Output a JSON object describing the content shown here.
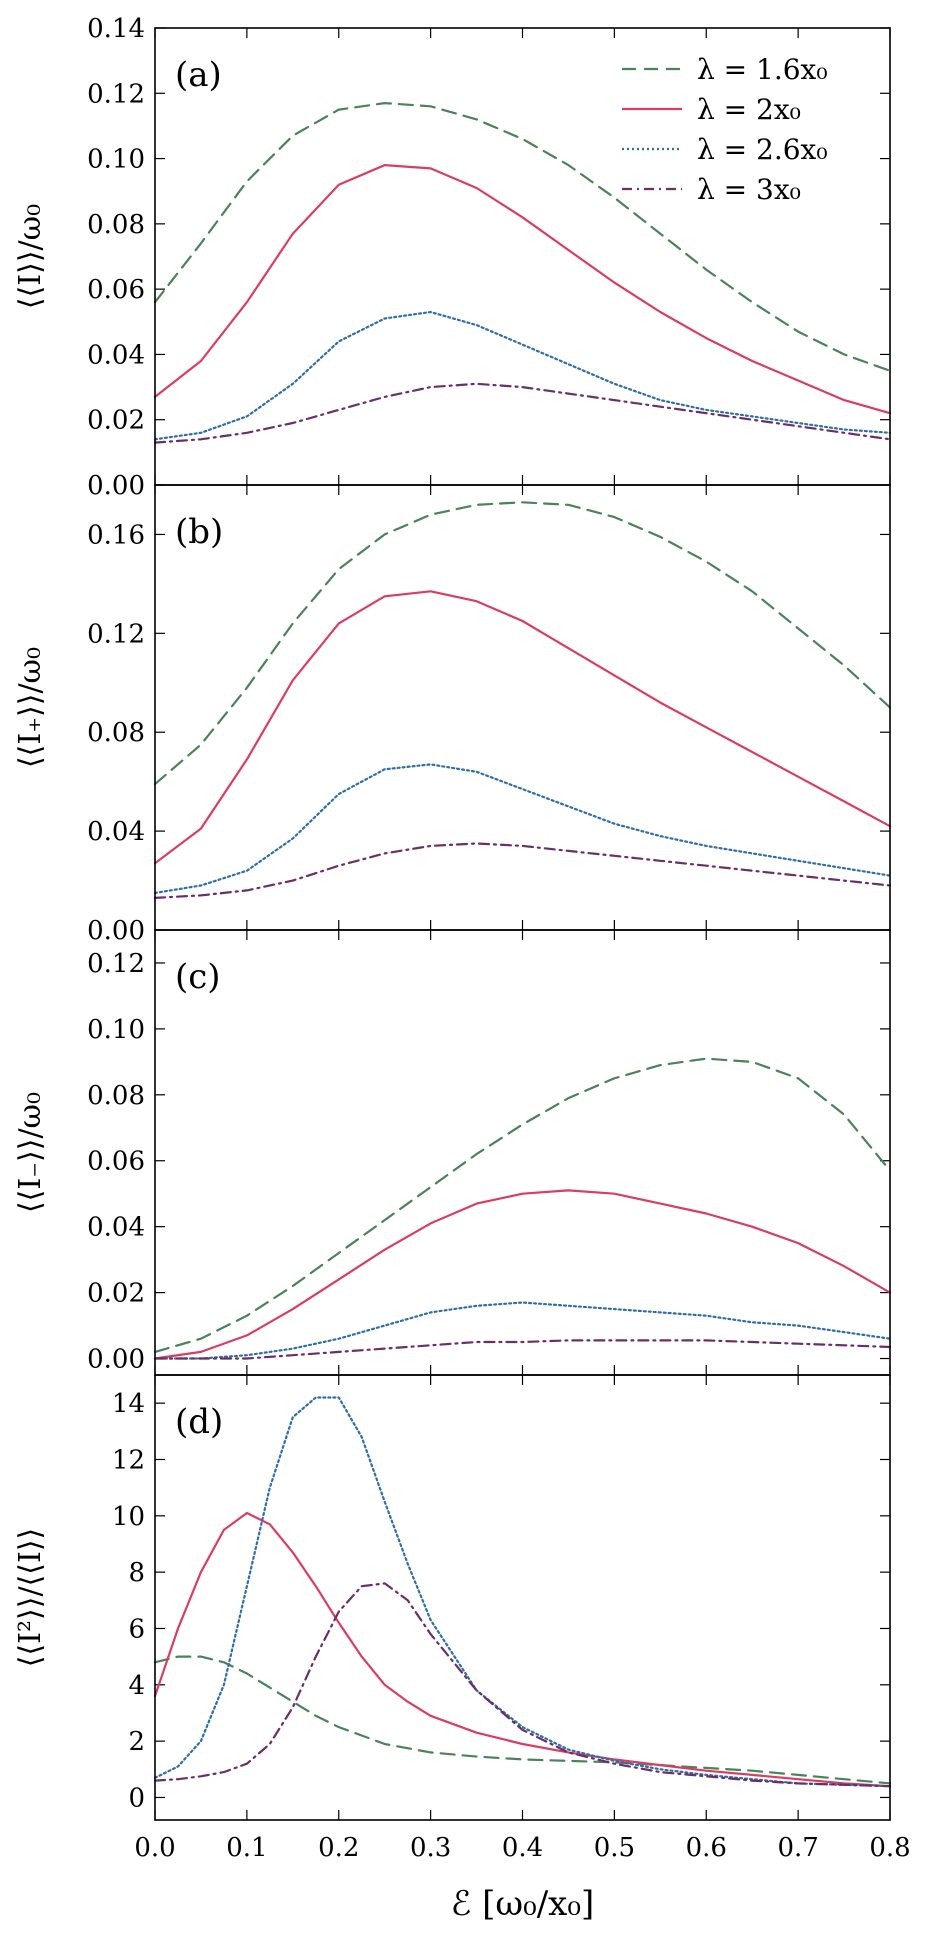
{
  "chart_data": [
    {
      "type": "line",
      "panel_label": "(a)",
      "ylabel": "⟨⟨I⟩⟩/ω₀",
      "xlim": [
        0.0,
        0.8
      ],
      "ylim": [
        0.0,
        0.14
      ],
      "yticks": [
        "0.00",
        "0.02",
        "0.04",
        "0.06",
        "0.08",
        "0.10",
        "0.12",
        "0.14"
      ],
      "legend": true,
      "x": [
        0.0,
        0.05,
        0.1,
        0.15,
        0.2,
        0.25,
        0.3,
        0.35,
        0.4,
        0.45,
        0.5,
        0.55,
        0.6,
        0.65,
        0.7,
        0.75,
        0.8
      ],
      "series": [
        {
          "name": "λ = 1.6x₀",
          "values": [
            0.056,
            0.074,
            0.093,
            0.107,
            0.115,
            0.117,
            0.116,
            0.112,
            0.106,
            0.098,
            0.088,
            0.077,
            0.066,
            0.056,
            0.047,
            0.04,
            0.035
          ]
        },
        {
          "name": "λ = 2x₀",
          "values": [
            0.027,
            0.038,
            0.056,
            0.077,
            0.092,
            0.098,
            0.097,
            0.091,
            0.082,
            0.072,
            0.062,
            0.053,
            0.045,
            0.038,
            0.032,
            0.026,
            0.022
          ]
        },
        {
          "name": "λ = 2.6x₀",
          "values": [
            0.014,
            0.016,
            0.021,
            0.031,
            0.044,
            0.051,
            0.053,
            0.049,
            0.043,
            0.037,
            0.031,
            0.026,
            0.023,
            0.021,
            0.019,
            0.017,
            0.016
          ]
        },
        {
          "name": "λ = 3x₀",
          "values": [
            0.013,
            0.014,
            0.016,
            0.019,
            0.023,
            0.027,
            0.03,
            0.031,
            0.03,
            0.028,
            0.026,
            0.024,
            0.022,
            0.02,
            0.018,
            0.016,
            0.014
          ]
        }
      ]
    },
    {
      "type": "line",
      "panel_label": "(b)",
      "ylabel": "⟨⟨I₊⟩⟩/ω₀",
      "xlim": [
        0.0,
        0.8
      ],
      "ylim": [
        0.0,
        0.18
      ],
      "yticks": [
        "0.00",
        "0.04",
        "0.08",
        "0.12",
        "0.16"
      ],
      "legend": false,
      "x": [
        0.0,
        0.05,
        0.1,
        0.15,
        0.2,
        0.25,
        0.3,
        0.35,
        0.4,
        0.45,
        0.5,
        0.55,
        0.6,
        0.65,
        0.7,
        0.75,
        0.8
      ],
      "series": [
        {
          "name": "λ = 1.6x₀",
          "values": [
            0.059,
            0.075,
            0.098,
            0.124,
            0.146,
            0.16,
            0.168,
            0.172,
            0.173,
            0.172,
            0.167,
            0.159,
            0.149,
            0.137,
            0.122,
            0.107,
            0.09
          ]
        },
        {
          "name": "λ = 2x₀",
          "values": [
            0.027,
            0.041,
            0.069,
            0.101,
            0.124,
            0.135,
            0.137,
            0.133,
            0.125,
            0.114,
            0.103,
            0.092,
            0.082,
            0.072,
            0.062,
            0.052,
            0.042
          ]
        },
        {
          "name": "λ = 2.6x₀",
          "values": [
            0.015,
            0.018,
            0.024,
            0.037,
            0.055,
            0.065,
            0.067,
            0.064,
            0.057,
            0.05,
            0.043,
            0.038,
            0.034,
            0.031,
            0.028,
            0.025,
            0.022
          ]
        },
        {
          "name": "λ = 3x₀",
          "values": [
            0.013,
            0.014,
            0.016,
            0.02,
            0.026,
            0.031,
            0.034,
            0.035,
            0.034,
            0.032,
            0.03,
            0.028,
            0.026,
            0.024,
            0.022,
            0.02,
            0.018
          ]
        }
      ]
    },
    {
      "type": "line",
      "panel_label": "(c)",
      "ylabel": "⟨⟨I₋⟩⟩/ω₀",
      "xlim": [
        0.0,
        0.8
      ],
      "ylim": [
        -0.005,
        0.13
      ],
      "yticks": [
        "0.00",
        "0.02",
        "0.04",
        "0.06",
        "0.08",
        "0.10",
        "0.12"
      ],
      "legend": false,
      "x": [
        0.0,
        0.05,
        0.1,
        0.15,
        0.2,
        0.25,
        0.3,
        0.35,
        0.4,
        0.45,
        0.5,
        0.55,
        0.6,
        0.65,
        0.7,
        0.75,
        0.8
      ],
      "series": [
        {
          "name": "λ = 1.6x₀",
          "values": [
            0.002,
            0.006,
            0.013,
            0.022,
            0.032,
            0.042,
            0.052,
            0.062,
            0.071,
            0.079,
            0.085,
            0.089,
            0.091,
            0.09,
            0.085,
            0.074,
            0.057
          ]
        },
        {
          "name": "λ = 2x₀",
          "values": [
            0.0,
            0.002,
            0.007,
            0.015,
            0.024,
            0.033,
            0.041,
            0.047,
            0.05,
            0.051,
            0.05,
            0.047,
            0.044,
            0.04,
            0.035,
            0.028,
            0.02
          ]
        },
        {
          "name": "λ = 2.6x₀",
          "values": [
            0.0,
            0.0,
            0.001,
            0.003,
            0.006,
            0.01,
            0.014,
            0.016,
            0.017,
            0.016,
            0.015,
            0.014,
            0.013,
            0.011,
            0.01,
            0.008,
            0.006
          ]
        },
        {
          "name": "λ = 3x₀",
          "values": [
            0.0,
            0.0,
            0.0,
            0.001,
            0.002,
            0.003,
            0.004,
            0.005,
            0.005,
            0.0055,
            0.0055,
            0.0055,
            0.0055,
            0.005,
            0.0045,
            0.004,
            0.0035
          ]
        }
      ]
    },
    {
      "type": "line",
      "panel_label": "(d)",
      "ylabel": "⟨⟨I²⟩⟩/⟨⟨I⟩⟩",
      "xlabel": "ℰ [ω₀/x₀]",
      "xlim": [
        0.0,
        0.8
      ],
      "ylim": [
        -0.8,
        15.0
      ],
      "yticks": [
        "0",
        "2",
        "4",
        "6",
        "8",
        "10",
        "12",
        "14"
      ],
      "xticks": [
        "0.0",
        "0.1",
        "0.2",
        "0.3",
        "0.4",
        "0.5",
        "0.6",
        "0.7",
        "0.8"
      ],
      "legend": false,
      "x": [
        0.0,
        0.025,
        0.05,
        0.075,
        0.1,
        0.125,
        0.15,
        0.175,
        0.2,
        0.225,
        0.25,
        0.275,
        0.3,
        0.35,
        0.4,
        0.45,
        0.5,
        0.55,
        0.6,
        0.65,
        0.7,
        0.75,
        0.8
      ],
      "series": [
        {
          "name": "λ = 1.6x₀",
          "values": [
            4.8,
            5.0,
            5.0,
            4.8,
            4.4,
            3.9,
            3.4,
            2.9,
            2.5,
            2.2,
            1.9,
            1.75,
            1.6,
            1.45,
            1.35,
            1.3,
            1.25,
            1.15,
            1.05,
            0.95,
            0.8,
            0.65,
            0.5
          ]
        },
        {
          "name": "λ = 2x₀",
          "values": [
            3.6,
            6.0,
            8.0,
            9.5,
            10.1,
            9.7,
            8.7,
            7.5,
            6.2,
            5.0,
            4.0,
            3.4,
            2.9,
            2.3,
            1.9,
            1.6,
            1.35,
            1.15,
            0.95,
            0.8,
            0.65,
            0.5,
            0.4
          ]
        },
        {
          "name": "λ = 2.6x₀",
          "values": [
            0.7,
            1.1,
            2.0,
            4.0,
            7.5,
            11.0,
            13.5,
            14.2,
            14.2,
            12.8,
            10.5,
            8.3,
            6.3,
            3.8,
            2.5,
            1.7,
            1.3,
            1.0,
            0.8,
            0.65,
            0.5,
            0.45,
            0.4
          ]
        },
        {
          "name": "λ = 3x₀",
          "values": [
            0.6,
            0.65,
            0.75,
            0.9,
            1.2,
            1.9,
            3.2,
            5.0,
            6.6,
            7.5,
            7.6,
            7.0,
            5.8,
            3.8,
            2.4,
            1.6,
            1.2,
            0.9,
            0.75,
            0.6,
            0.5,
            0.45,
            0.4
          ]
        }
      ]
    }
  ],
  "styles": [
    {
      "color": "#4a8358",
      "dash": "14 8",
      "width": 2.2
    },
    {
      "color": "#d93d62",
      "dash": "",
      "width": 2.2
    },
    {
      "color": "#2f6fa6",
      "dash": "2 3",
      "width": 2.2
    },
    {
      "color": "#6b2f68",
      "dash": "10 5 2 5",
      "width": 2.2
    }
  ],
  "legend_labels": [
    "λ = 1.6x₀",
    "λ = 2x₀",
    "λ = 2.6x₀",
    "λ = 3x₀"
  ]
}
